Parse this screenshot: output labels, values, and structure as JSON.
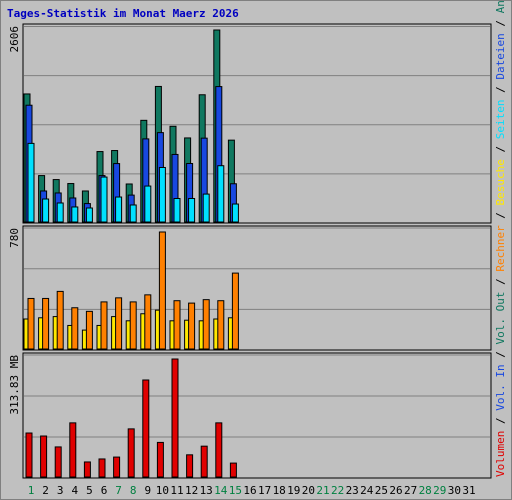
{
  "chart_data": {
    "type": "bar",
    "title": "Tages-Statistik im Monat Maerz 2026",
    "colors": {
      "background": "#c0c0c0",
      "title": "#0000c0",
      "grid": "#808080",
      "axis_text": "#000000",
      "weekend": "#008040",
      "anfragen": "#107860",
      "dateien": "#1848e0",
      "seiten": "#00e0ff",
      "besuche": "#ffe800",
      "rechner": "#ff8000",
      "volumen": "#e00000"
    },
    "categories": [
      "1",
      "2",
      "3",
      "4",
      "5",
      "6",
      "7",
      "8",
      "9",
      "10",
      "11",
      "12",
      "13",
      "14",
      "15",
      "16",
      "17",
      "18",
      "19",
      "20",
      "21",
      "22",
      "23",
      "24",
      "25",
      "26",
      "27",
      "28",
      "29",
      "30",
      "31"
    ],
    "weekend_days": [
      "1",
      "7",
      "8",
      "14",
      "15",
      "21",
      "22",
      "28",
      "29"
    ],
    "legend_right": [
      {
        "text": "Volumen",
        "key": "volumen"
      },
      {
        "text": "Vol. In",
        "key": "dateien"
      },
      {
        "text": "Vol. Out",
        "key": "anfragen"
      },
      {
        "text": "Rechner",
        "key": "rechner"
      },
      {
        "text": "Besuche",
        "key": "besuche"
      },
      {
        "text": "Seiten",
        "key": "seiten"
      },
      {
        "text": "Dateien",
        "key": "dateien"
      },
      {
        "text": "Anfragen",
        "key": "anfragen"
      }
    ],
    "panels": [
      {
        "id": "hits",
        "max_label": "2606",
        "ymax": 2606,
        "series": [
          {
            "name": "Anfragen",
            "color_key": "anfragen",
            "values": [
              1738,
              630,
              576,
              522,
              421,
              956,
              970,
              516,
              1380,
              1840,
              1299,
              1141,
              1727,
              2606,
              1111,
              null,
              null,
              null,
              null,
              null,
              null,
              null,
              null,
              null,
              null,
              null,
              null,
              null,
              null,
              null,
              null
            ]
          },
          {
            "name": "Dateien",
            "color_key": "dateien",
            "values": [
              1585,
              421,
              394,
              326,
              250,
              630,
              793,
              365,
              1128,
              1213,
              917,
              794,
              1138,
              1838,
              519,
              null,
              null,
              null,
              null,
              null,
              null,
              null,
              null,
              null,
              null,
              null,
              null,
              null,
              null,
              null,
              null
            ]
          },
          {
            "name": "Seiten",
            "color_key": "seiten",
            "values": [
              1067,
              312,
              258,
              204,
              190,
              610,
              339,
              231,
              488,
              740,
              319,
              319,
              379,
              764,
              244,
              null,
              null,
              null,
              null,
              null,
              null,
              null,
              null,
              null,
              null,
              null,
              null,
              null,
              null,
              null,
              null
            ]
          }
        ]
      },
      {
        "id": "visits",
        "max_label": "780",
        "ymax": 780,
        "series": [
          {
            "name": "Besuche",
            "color_key": "besuche",
            "values": [
              200,
              208,
              216,
              157,
              126,
              157,
              216,
              188,
              235,
              259,
              188,
              192,
              188,
              200,
              208,
              null,
              null,
              null,
              null,
              null,
              null,
              null,
              null,
              null,
              null,
              null,
              null,
              null,
              null,
              null,
              null
            ]
          },
          {
            "name": "Rechner",
            "color_key": "rechner",
            "values": [
              337,
              337,
              384,
              275,
              251,
              314,
              341,
              314,
              361,
              780,
              322,
              306,
              329,
              322,
              506,
              null,
              null,
              null,
              null,
              null,
              null,
              null,
              null,
              null,
              null,
              null,
              null,
              null,
              null,
              null,
              null
            ]
          }
        ]
      },
      {
        "id": "volume",
        "max_label": "313.83 MB",
        "ymax": 313.83,
        "unit": "MB",
        "series": [
          {
            "name": "Volumen",
            "color_key": "volumen",
            "values": [
              117,
              109,
              80,
              144,
              40,
              48,
              53,
              128,
              258,
              92,
              313.83,
              59,
              82,
              144,
              37,
              null,
              null,
              null,
              null,
              null,
              null,
              null,
              null,
              null,
              null,
              null,
              null,
              null,
              null,
              null,
              null
            ]
          }
        ]
      }
    ]
  }
}
